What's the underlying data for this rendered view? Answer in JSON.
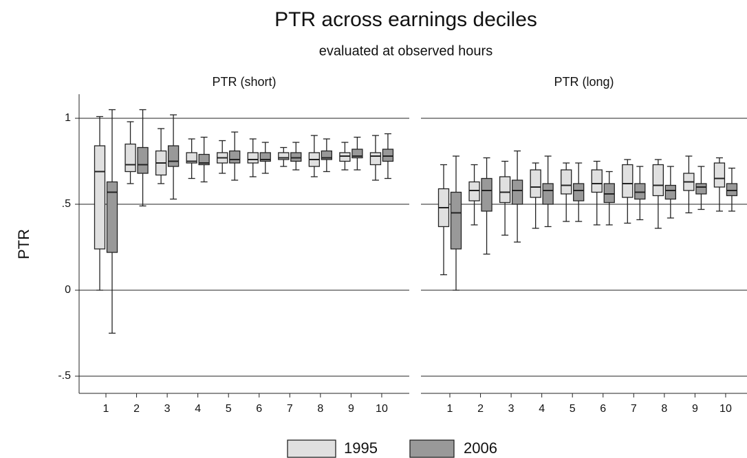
{
  "chart_data": {
    "type": "box",
    "title": "PTR across earnings deciles",
    "subtitle": "evaluated at observed hours",
    "y_label": "PTR",
    "panels": [
      "PTR (short)",
      "PTR (long)"
    ],
    "categories": [
      "1",
      "2",
      "3",
      "4",
      "5",
      "6",
      "7",
      "8",
      "9",
      "10"
    ],
    "ylim": [
      -0.6,
      1.14
    ],
    "yticks": [
      {
        "value": -0.5,
        "label": "-.5"
      },
      0,
      {
        "value": 0.5,
        "label": ".5"
      },
      1
    ],
    "grid": true,
    "series": [
      {
        "name": "1995",
        "color": "#e0e0e0",
        "values": [
          [
            {
              "min": 0,
              "q1": 0.24,
              "median": 0.69,
              "q3": 0.84,
              "max": 1.01
            },
            {
              "min": 0.62,
              "q1": 0.69,
              "median": 0.73,
              "q3": 0.85,
              "max": 0.98
            },
            {
              "min": 0.62,
              "q1": 0.67,
              "median": 0.74,
              "q3": 0.81,
              "max": 0.94
            },
            {
              "min": 0.65,
              "q1": 0.74,
              "median": 0.75,
              "q3": 0.8,
              "max": 0.88
            },
            {
              "min": 0.68,
              "q1": 0.74,
              "median": 0.77,
              "q3": 0.8,
              "max": 0.87
            },
            {
              "min": 0.66,
              "q1": 0.74,
              "median": 0.76,
              "q3": 0.8,
              "max": 0.88
            },
            {
              "min": 0.72,
              "q1": 0.76,
              "median": 0.77,
              "q3": 0.8,
              "max": 0.83
            },
            {
              "min": 0.66,
              "q1": 0.72,
              "median": 0.76,
              "q3": 0.8,
              "max": 0.9
            },
            {
              "min": 0.7,
              "q1": 0.75,
              "median": 0.78,
              "q3": 0.8,
              "max": 0.86
            },
            {
              "min": 0.64,
              "q1": 0.73,
              "median": 0.78,
              "q3": 0.8,
              "max": 0.9
            }
          ],
          [
            {
              "min": 0.09,
              "q1": 0.37,
              "median": 0.48,
              "q3": 0.59,
              "max": 0.73
            },
            {
              "min": 0.38,
              "q1": 0.52,
              "median": 0.58,
              "q3": 0.63,
              "max": 0.73
            },
            {
              "min": 0.32,
              "q1": 0.51,
              "median": 0.57,
              "q3": 0.66,
              "max": 0.75
            },
            {
              "min": 0.36,
              "q1": 0.54,
              "median": 0.6,
              "q3": 0.7,
              "max": 0.74
            },
            {
              "min": 0.4,
              "q1": 0.56,
              "median": 0.61,
              "q3": 0.7,
              "max": 0.74
            },
            {
              "min": 0.38,
              "q1": 0.57,
              "median": 0.62,
              "q3": 0.7,
              "max": 0.75
            },
            {
              "min": 0.39,
              "q1": 0.54,
              "median": 0.62,
              "q3": 0.73,
              "max": 0.76
            },
            {
              "min": 0.36,
              "q1": 0.55,
              "median": 0.61,
              "q3": 0.73,
              "max": 0.76
            },
            {
              "min": 0.45,
              "q1": 0.58,
              "median": 0.63,
              "q3": 0.68,
              "max": 0.78
            },
            {
              "min": 0.46,
              "q1": 0.6,
              "median": 0.65,
              "q3": 0.74,
              "max": 0.77
            }
          ]
        ]
      },
      {
        "name": "2006",
        "color": "#999999",
        "values": [
          [
            {
              "min": -0.25,
              "q1": 0.22,
              "median": 0.57,
              "q3": 0.63,
              "max": 1.05
            },
            {
              "min": 0.49,
              "q1": 0.68,
              "median": 0.73,
              "q3": 0.83,
              "max": 1.05
            },
            {
              "min": 0.53,
              "q1": 0.72,
              "median": 0.75,
              "q3": 0.84,
              "max": 1.02
            },
            {
              "min": 0.63,
              "q1": 0.73,
              "median": 0.74,
              "q3": 0.79,
              "max": 0.89
            },
            {
              "min": 0.64,
              "q1": 0.74,
              "median": 0.76,
              "q3": 0.81,
              "max": 0.92
            },
            {
              "min": 0.68,
              "q1": 0.75,
              "median": 0.76,
              "q3": 0.8,
              "max": 0.86
            },
            {
              "min": 0.7,
              "q1": 0.75,
              "median": 0.77,
              "q3": 0.8,
              "max": 0.86
            },
            {
              "min": 0.69,
              "q1": 0.76,
              "median": 0.77,
              "q3": 0.81,
              "max": 0.88
            },
            {
              "min": 0.7,
              "q1": 0.77,
              "median": 0.78,
              "q3": 0.82,
              "max": 0.89
            },
            {
              "min": 0.65,
              "q1": 0.75,
              "median": 0.78,
              "q3": 0.82,
              "max": 0.91
            }
          ],
          [
            {
              "min": 0,
              "q1": 0.24,
              "median": 0.45,
              "q3": 0.57,
              "max": 0.78
            },
            {
              "min": 0.21,
              "q1": 0.46,
              "median": 0.58,
              "q3": 0.65,
              "max": 0.77
            },
            {
              "min": 0.28,
              "q1": 0.5,
              "median": 0.58,
              "q3": 0.64,
              "max": 0.81
            },
            {
              "min": 0.37,
              "q1": 0.5,
              "median": 0.58,
              "q3": 0.62,
              "max": 0.78
            },
            {
              "min": 0.4,
              "q1": 0.52,
              "median": 0.58,
              "q3": 0.62,
              "max": 0.74
            },
            {
              "min": 0.38,
              "q1": 0.51,
              "median": 0.56,
              "q3": 0.62,
              "max": 0.69
            },
            {
              "min": 0.41,
              "q1": 0.53,
              "median": 0.57,
              "q3": 0.62,
              "max": 0.72
            },
            {
              "min": 0.42,
              "q1": 0.53,
              "median": 0.58,
              "q3": 0.61,
              "max": 0.72
            },
            {
              "min": 0.47,
              "q1": 0.56,
              "median": 0.6,
              "q3": 0.62,
              "max": 0.72
            },
            {
              "min": 0.46,
              "q1": 0.55,
              "median": 0.58,
              "q3": 0.62,
              "max": 0.71
            }
          ]
        ]
      }
    ]
  }
}
